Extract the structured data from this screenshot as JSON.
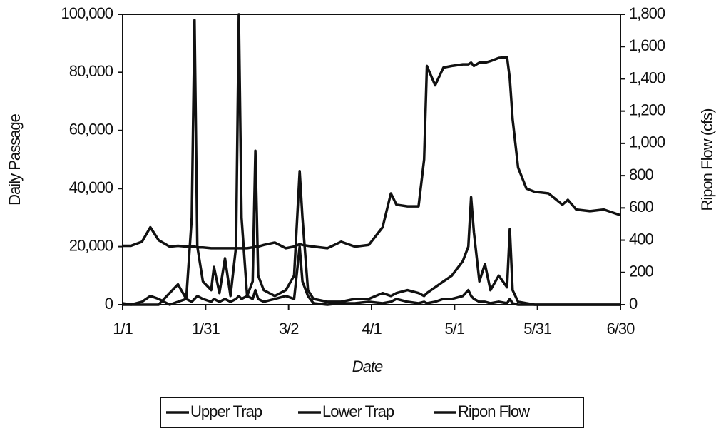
{
  "chart_data": {
    "type": "line",
    "x_label": "Date",
    "y_label": "Daily Passage",
    "y2_label": "Ripon Flow (cfs)",
    "x": [
      1,
      4,
      8,
      11,
      14,
      18,
      21,
      24,
      26,
      27,
      28,
      30,
      33,
      34,
      36,
      38,
      40,
      42,
      43,
      44,
      46,
      48,
      49,
      50,
      52,
      56,
      60,
      63,
      65,
      66,
      68,
      70,
      75,
      80,
      85,
      90,
      95,
      98,
      100,
      104,
      108,
      110,
      111,
      114,
      117,
      120,
      124,
      126,
      127,
      128,
      130,
      132,
      134,
      137,
      140,
      141,
      142,
      144,
      147,
      150,
      155,
      160,
      162,
      165,
      170,
      175,
      181
    ],
    "xlim": [
      1,
      181
    ],
    "xticks": [
      {
        "value": 1,
        "label": "1/1"
      },
      {
        "value": 31,
        "label": "1/31"
      },
      {
        "value": 61,
        "label": "3/2"
      },
      {
        "value": 91,
        "label": "4/1"
      },
      {
        "value": 121,
        "label": "5/1"
      },
      {
        "value": 151,
        "label": "5/31"
      },
      {
        "value": 181,
        "label": "6/30"
      }
    ],
    "ylim": [
      0,
      100000
    ],
    "yticks": [
      0,
      {
        "value": 20000,
        "label": "20,000"
      },
      {
        "value": 40000,
        "label": "40,000"
      },
      {
        "value": 60000,
        "label": "60,000"
      },
      {
        "value": 80000,
        "label": "80,000"
      },
      {
        "value": 100000,
        "label": "100,000"
      }
    ],
    "y2lim": [
      0,
      1800
    ],
    "y2ticks": [
      0,
      200,
      400,
      600,
      800,
      {
        "value": 1000,
        "label": "1,000"
      },
      {
        "value": 1200,
        "label": "1,200"
      },
      {
        "value": 1400,
        "label": "1,400"
      },
      {
        "value": 1600,
        "label": "1,600"
      },
      {
        "value": 1800,
        "label": "1,800"
      }
    ],
    "legend": "bottom",
    "series": [
      {
        "name": "Upper Trap",
        "color": "#111111",
        "values": [
          500,
          0,
          1000,
          3000,
          2000,
          0,
          1000,
          2000,
          30000,
          98000,
          20000,
          8000,
          5000,
          13000,
          4000,
          16000,
          3000,
          20000,
          100000,
          30000,
          3000,
          2000,
          5000,
          2000,
          1000,
          2000,
          3000,
          2000,
          20000,
          8000,
          3000,
          500,
          0,
          500,
          500,
          1000,
          500,
          1000,
          2000,
          1000,
          500,
          1000,
          500,
          1000,
          2000,
          2000,
          3000,
          5000,
          3000,
          2000,
          1000,
          1000,
          500,
          1000,
          500,
          2000,
          500,
          0,
          0,
          0,
          0,
          0,
          0,
          0,
          0,
          0,
          0
        ]
      },
      {
        "name": "Lower Trap",
        "color": "#111111",
        "values": [
          0,
          0,
          0,
          0,
          0,
          4000,
          7000,
          2000,
          1000,
          2000,
          3000,
          2000,
          1000,
          2000,
          1000,
          2000,
          1000,
          2000,
          3000,
          2000,
          3000,
          8000,
          53000,
          10000,
          5000,
          3000,
          5000,
          10000,
          46000,
          30000,
          5000,
          2000,
          1000,
          1000,
          2000,
          2000,
          4000,
          3000,
          4000,
          5000,
          4000,
          3000,
          4000,
          6000,
          8000,
          10000,
          15000,
          20000,
          37000,
          25000,
          8000,
          14000,
          5000,
          10000,
          6000,
          26000,
          5000,
          1000,
          500,
          0,
          0,
          0,
          0,
          0,
          0,
          0,
          0
        ]
      },
      {
        "name": "Ripon Flow",
        "color": "#111111",
        "axis": "y2",
        "values": [
          365,
          365,
          390,
          480,
          400,
          360,
          365,
          360,
          360,
          360,
          355,
          355,
          350,
          350,
          350,
          350,
          350,
          350,
          350,
          350,
          350,
          355,
          360,
          360,
          370,
          385,
          350,
          360,
          375,
          370,
          365,
          360,
          350,
          390,
          360,
          370,
          480,
          690,
          620,
          610,
          610,
          900,
          1480,
          1360,
          1470,
          1480,
          1490,
          1490,
          1500,
          1480,
          1500,
          1500,
          1510,
          1530,
          1535,
          1400,
          1150,
          850,
          720,
          700,
          690,
          620,
          650,
          590,
          580,
          590,
          555
        ]
      }
    ]
  }
}
